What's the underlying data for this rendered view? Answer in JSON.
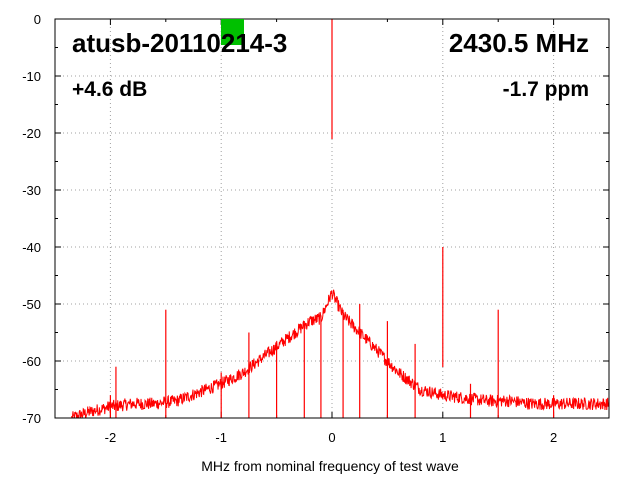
{
  "chart_data": {
    "type": "line",
    "title": "",
    "xlabel": "MHz from nominal frequency of test wave",
    "ylabel": "",
    "xlim": [
      -2.5,
      2.5
    ],
    "ylim": [
      -70,
      0
    ],
    "x_ticks": [
      -2,
      -1,
      0,
      1,
      2
    ],
    "x_tick_labels": [
      "-2",
      "-1",
      "0",
      "1",
      "2"
    ],
    "y_ticks": [
      0,
      -10,
      -20,
      -30,
      -40,
      -50,
      -60,
      -70
    ],
    "y_tick_labels": [
      "0",
      "-10",
      "-20",
      "-30",
      "-40",
      "-50",
      "-60",
      "-70"
    ],
    "grid": true,
    "legend": "none",
    "annotations": {
      "device": "atusb-20110214-3",
      "frequency": "2430.5 MHz",
      "gain": "+4.6 dB",
      "offset": "-1.7 ppm"
    },
    "status_indicator_color": "#00c000",
    "series": [
      {
        "color": "#ff0000",
        "x": [
          -2.35,
          -2.2,
          -2.0,
          -1.8,
          -1.6,
          -1.4,
          -1.2,
          -1.0,
          -0.8,
          -0.6,
          -0.4,
          -0.2,
          -0.1,
          0.0,
          0.1,
          0.2,
          0.4,
          0.6,
          0.8,
          1.0,
          1.2,
          1.4,
          1.6,
          1.8,
          2.0,
          2.2,
          2.5
        ],
        "y": [
          -70,
          -69,
          -68,
          -67.5,
          -67.5,
          -67,
          -65.5,
          -64,
          -62,
          -59,
          -56,
          -53,
          -52.5,
          -48,
          -52,
          -54,
          -58,
          -62,
          -65,
          -66,
          -66.5,
          -67,
          -67,
          -67.5,
          -67.5,
          -67.5,
          -67.5
        ]
      }
    ],
    "spurs": [
      {
        "x": -2.0,
        "y": -66
      },
      {
        "x": -1.95,
        "y": -61
      },
      {
        "x": -1.5,
        "y": -51
      },
      {
        "x": -1.0,
        "y": -62
      },
      {
        "x": -0.75,
        "y": -55
      },
      {
        "x": -0.5,
        "y": -57
      },
      {
        "x": -0.25,
        "y": -53
      },
      {
        "x": -0.1,
        "y": -52
      },
      {
        "x": 0.0,
        "y": 0
      },
      {
        "x": 0.1,
        "y": -51
      },
      {
        "x": 0.25,
        "y": -50
      },
      {
        "x": 0.5,
        "y": -53
      },
      {
        "x": 0.75,
        "y": -57
      },
      {
        "x": 1.0,
        "y": -40
      },
      {
        "x": 1.25,
        "y": -64
      },
      {
        "x": 1.5,
        "y": -51
      },
      {
        "x": 2.0,
        "y": -66
      }
    ]
  }
}
